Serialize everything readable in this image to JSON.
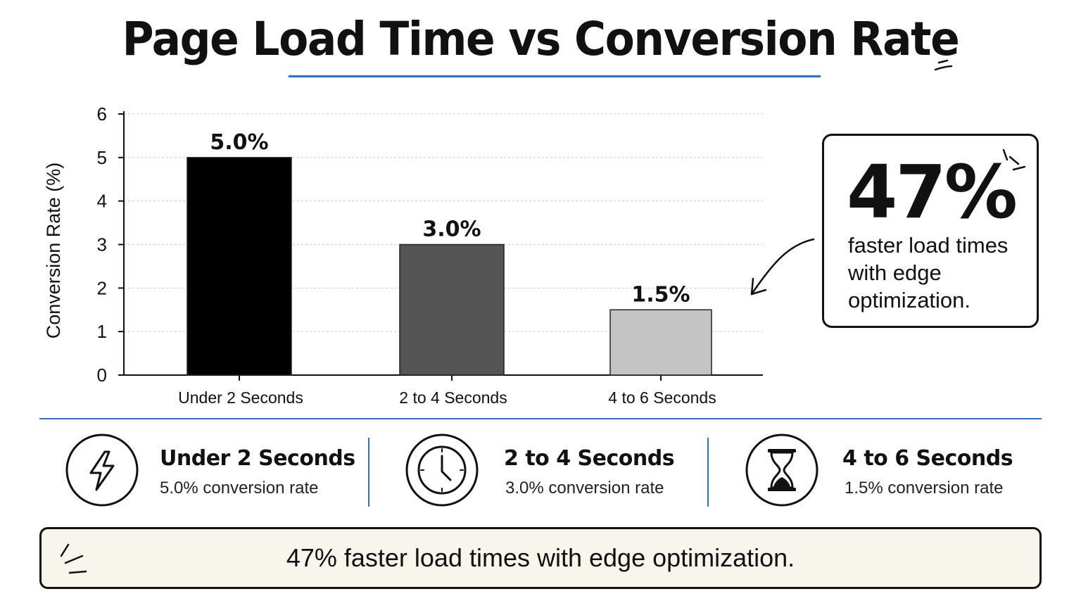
{
  "title": "Page Load Time vs Conversion Rate",
  "colors": {
    "accent": "#2a6edb",
    "bars": [
      "#000000",
      "#555555",
      "#c4c4c4"
    ]
  },
  "chart_data": {
    "type": "bar",
    "title": "Page Load Time vs Conversion Rate",
    "categories": [
      "Under 2 Seconds",
      "2 to 4 Seconds",
      "4 to 6 Seconds"
    ],
    "values": [
      5.0,
      3.0,
      1.5
    ],
    "data_labels": [
      "5.0%",
      "3.0%",
      "1.5%"
    ],
    "xlabel": "",
    "ylabel": "Conversion Rate (%)",
    "ylim": [
      0,
      6
    ],
    "yticks": [
      0,
      1,
      2,
      3,
      4,
      5,
      6
    ],
    "grid": true,
    "legend": "none"
  },
  "callout": {
    "value": "47%",
    "text": "faster load times with edge optimization."
  },
  "stats": [
    {
      "icon": "lightning-bolt-icon",
      "title": "Under 2 Seconds",
      "subtitle": "5.0% conversion rate"
    },
    {
      "icon": "clock-icon",
      "title": "2 to 4 Seconds",
      "subtitle": "3.0% conversion rate"
    },
    {
      "icon": "hourglass-icon",
      "title": "4 to 6 Seconds",
      "subtitle": "1.5% conversion rate"
    }
  ],
  "banner": {
    "text": "47% faster load times with edge optimization."
  }
}
